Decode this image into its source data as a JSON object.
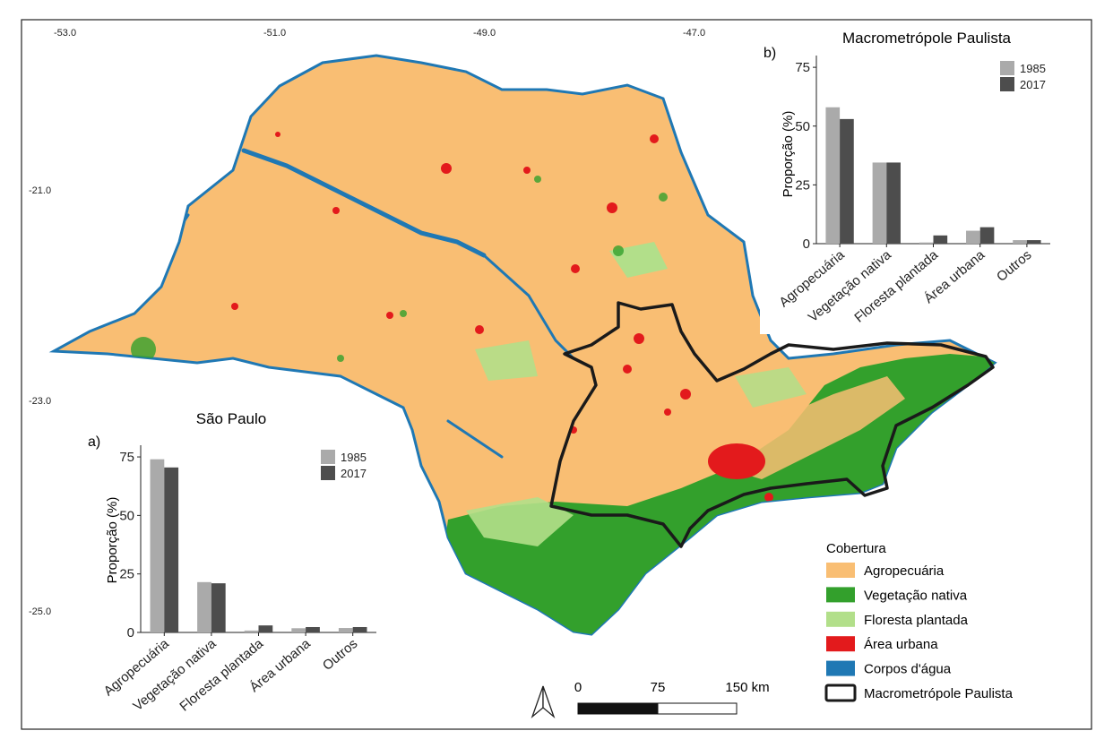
{
  "map": {
    "coords": {
      "longitudes": [
        "-53.0",
        "-51.0",
        "-49.0",
        "-47.0"
      ],
      "latitudes": [
        "-21.0",
        "-23.0",
        "-25.0"
      ]
    },
    "colors": {
      "agro": "#f9be73",
      "native": "#33a02c",
      "planted": "#b2df8a",
      "urban": "#e31a1c",
      "water": "#1f78b4",
      "outline": "#1a1a1a"
    }
  },
  "legend": {
    "title": "Cobertura",
    "items": [
      {
        "label": "Agropecuária",
        "color": "#f9be73"
      },
      {
        "label": "Vegetação nativa",
        "color": "#33a02c"
      },
      {
        "label": "Floresta plantada",
        "color": "#b2df8a"
      },
      {
        "label": "Área urbana",
        "color": "#e31a1c"
      },
      {
        "label": "Corpos d'água",
        "color": "#1f78b4"
      },
      {
        "label": "Macrometrópole Paulista",
        "color": "#ffffff"
      }
    ]
  },
  "scalebar": {
    "labels": [
      "0",
      "75",
      "150 km"
    ]
  },
  "chart_data": [
    {
      "type": "bar",
      "panel": "a)",
      "title": "São Paulo",
      "ylabel": "Proporção (%)",
      "xlabel": "",
      "categories": [
        "Agropecuária",
        "Vegetação nativa",
        "Floresta plantada",
        "Área urbana",
        "Outros"
      ],
      "series": [
        {
          "name": "1985",
          "color": "#aaaaaa",
          "values": [
            74,
            21.5,
            0.8,
            1.8,
            1.9
          ]
        },
        {
          "name": "2017",
          "color": "#4d4d4d",
          "values": [
            70.5,
            21,
            3,
            2.3,
            2.3
          ]
        }
      ],
      "ylim": [
        0,
        80
      ],
      "yticks": [
        "0",
        "25",
        "50",
        "75"
      ],
      "legend_placement": "top-right"
    },
    {
      "type": "bar",
      "panel": "b)",
      "title": "Macrometrópole Paulista",
      "ylabel": "Proporção (%)",
      "xlabel": "",
      "categories": [
        "Agropecuária",
        "Vegetação nativa",
        "Floresta plantada",
        "Área urbana",
        "Outros"
      ],
      "series": [
        {
          "name": "1985",
          "color": "#aaaaaa",
          "values": [
            58,
            34.5,
            0.5,
            5.5,
            1.5
          ]
        },
        {
          "name": "2017",
          "color": "#4d4d4d",
          "values": [
            53,
            34.5,
            3.5,
            7,
            1.5
          ]
        }
      ],
      "ylim": [
        0,
        80
      ],
      "yticks": [
        "0",
        "25",
        "50",
        "75"
      ],
      "legend_placement": "top-right"
    }
  ]
}
